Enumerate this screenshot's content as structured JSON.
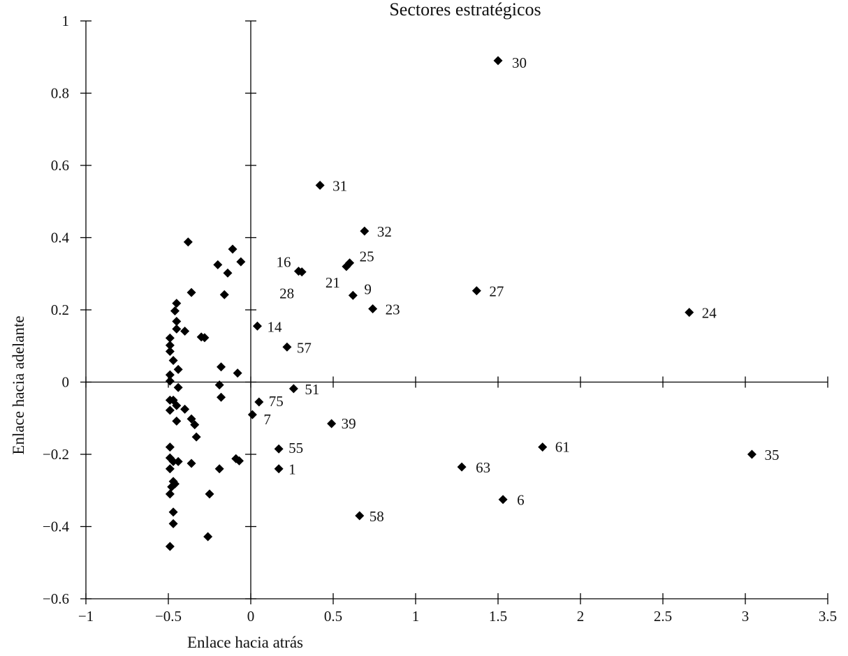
{
  "chart_data": {
    "type": "scatter",
    "title": "Sectores estratégicos",
    "xlabel": "Enlace hacia atrás",
    "ylabel": "Enlace hacia adelante",
    "xlim": [
      -1,
      3.5
    ],
    "ylim": [
      -0.6,
      1
    ],
    "xticks": [
      -1,
      -0.5,
      0,
      0.5,
      1,
      1.5,
      2,
      2.5,
      3,
      3.5
    ],
    "xtick_labels": [
      "−1",
      "−0.5",
      "0",
      "0.5",
      "1",
      "1.5",
      "2",
      "2.5",
      "3",
      "3.5"
    ],
    "yticks": [
      1,
      0.8,
      0.6,
      0.4,
      0.2,
      0,
      -0.2,
      -0.4,
      -0.6
    ],
    "ytick_labels": [
      "1",
      "0.8",
      "0.6",
      "0.4",
      "0.2",
      "0",
      "−0.2",
      "−0.4",
      "−0.6"
    ],
    "grid": false,
    "marker": "diamond",
    "marker_color": "#000000",
    "labeled_points": [
      {
        "label": "30",
        "x": 1.5,
        "y": 0.89
      },
      {
        "label": "31",
        "x": 0.42,
        "y": 0.545
      },
      {
        "label": "32",
        "x": 0.69,
        "y": 0.418
      },
      {
        "label": "25",
        "x": 0.6,
        "y": 0.33
      },
      {
        "label": "16",
        "x": 0.29,
        "y": 0.307
      },
      {
        "label": "21",
        "x": 0.58,
        "y": 0.32
      },
      {
        "label": "28",
        "x": 0.31,
        "y": 0.305
      },
      {
        "label": "9",
        "x": 0.62,
        "y": 0.24
      },
      {
        "label": "27",
        "x": 1.37,
        "y": 0.253
      },
      {
        "label": "23",
        "x": 0.74,
        "y": 0.203
      },
      {
        "label": "24",
        "x": 2.66,
        "y": 0.193
      },
      {
        "label": "14",
        "x": 0.04,
        "y": 0.155
      },
      {
        "label": "57",
        "x": 0.22,
        "y": 0.097
      },
      {
        "label": "51",
        "x": 0.26,
        "y": -0.018
      },
      {
        "label": "75",
        "x": 0.05,
        "y": -0.055
      },
      {
        "label": "7",
        "x": 0.01,
        "y": -0.09
      },
      {
        "label": "39",
        "x": 0.49,
        "y": -0.115
      },
      {
        "label": "55",
        "x": 0.17,
        "y": -0.185
      },
      {
        "label": "1",
        "x": 0.17,
        "y": -0.24
      },
      {
        "label": "61",
        "x": 1.77,
        "y": -0.18
      },
      {
        "label": "35",
        "x": 3.04,
        "y": -0.2
      },
      {
        "label": "63",
        "x": 1.28,
        "y": -0.235
      },
      {
        "label": "6",
        "x": 1.53,
        "y": -0.325
      },
      {
        "label": "58",
        "x": 0.66,
        "y": -0.37
      }
    ],
    "unlabeled_points": [
      {
        "x": -0.38,
        "y": 0.388
      },
      {
        "x": -0.11,
        "y": 0.368
      },
      {
        "x": -0.2,
        "y": 0.325
      },
      {
        "x": -0.06,
        "y": 0.333
      },
      {
        "x": -0.14,
        "y": 0.302
      },
      {
        "x": -0.36,
        "y": 0.248
      },
      {
        "x": -0.16,
        "y": 0.242
      },
      {
        "x": -0.45,
        "y": 0.218
      },
      {
        "x": -0.46,
        "y": 0.197
      },
      {
        "x": -0.45,
        "y": 0.168
      },
      {
        "x": -0.45,
        "y": 0.147
      },
      {
        "x": -0.4,
        "y": 0.141
      },
      {
        "x": -0.3,
        "y": 0.125
      },
      {
        "x": -0.28,
        "y": 0.123
      },
      {
        "x": -0.49,
        "y": 0.122
      },
      {
        "x": -0.49,
        "y": 0.102
      },
      {
        "x": -0.49,
        "y": 0.085
      },
      {
        "x": -0.47,
        "y": 0.06
      },
      {
        "x": -0.18,
        "y": 0.042
      },
      {
        "x": -0.44,
        "y": 0.035
      },
      {
        "x": -0.08,
        "y": 0.025
      },
      {
        "x": -0.49,
        "y": 0.02
      },
      {
        "x": -0.49,
        "y": 0.003
      },
      {
        "x": -0.19,
        "y": -0.008
      },
      {
        "x": -0.44,
        "y": -0.015
      },
      {
        "x": -0.18,
        "y": -0.042
      },
      {
        "x": -0.49,
        "y": -0.05
      },
      {
        "x": -0.47,
        "y": -0.05
      },
      {
        "x": -0.45,
        "y": -0.065
      },
      {
        "x": -0.4,
        "y": -0.075
      },
      {
        "x": -0.49,
        "y": -0.078
      },
      {
        "x": -0.36,
        "y": -0.102
      },
      {
        "x": -0.45,
        "y": -0.108
      },
      {
        "x": -0.34,
        "y": -0.118
      },
      {
        "x": -0.33,
        "y": -0.152
      },
      {
        "x": -0.49,
        "y": -0.18
      },
      {
        "x": -0.49,
        "y": -0.21
      },
      {
        "x": -0.09,
        "y": -0.212
      },
      {
        "x": -0.07,
        "y": -0.218
      },
      {
        "x": -0.47,
        "y": -0.22
      },
      {
        "x": -0.44,
        "y": -0.22
      },
      {
        "x": -0.36,
        "y": -0.225
      },
      {
        "x": -0.49,
        "y": -0.24
      },
      {
        "x": -0.19,
        "y": -0.24
      },
      {
        "x": -0.47,
        "y": -0.275
      },
      {
        "x": -0.46,
        "y": -0.282
      },
      {
        "x": -0.48,
        "y": -0.29
      },
      {
        "x": -0.49,
        "y": -0.31
      },
      {
        "x": -0.25,
        "y": -0.31
      },
      {
        "x": -0.47,
        "y": -0.36
      },
      {
        "x": -0.47,
        "y": -0.392
      },
      {
        "x": -0.26,
        "y": -0.428
      },
      {
        "x": -0.49,
        "y": -0.455
      }
    ]
  }
}
